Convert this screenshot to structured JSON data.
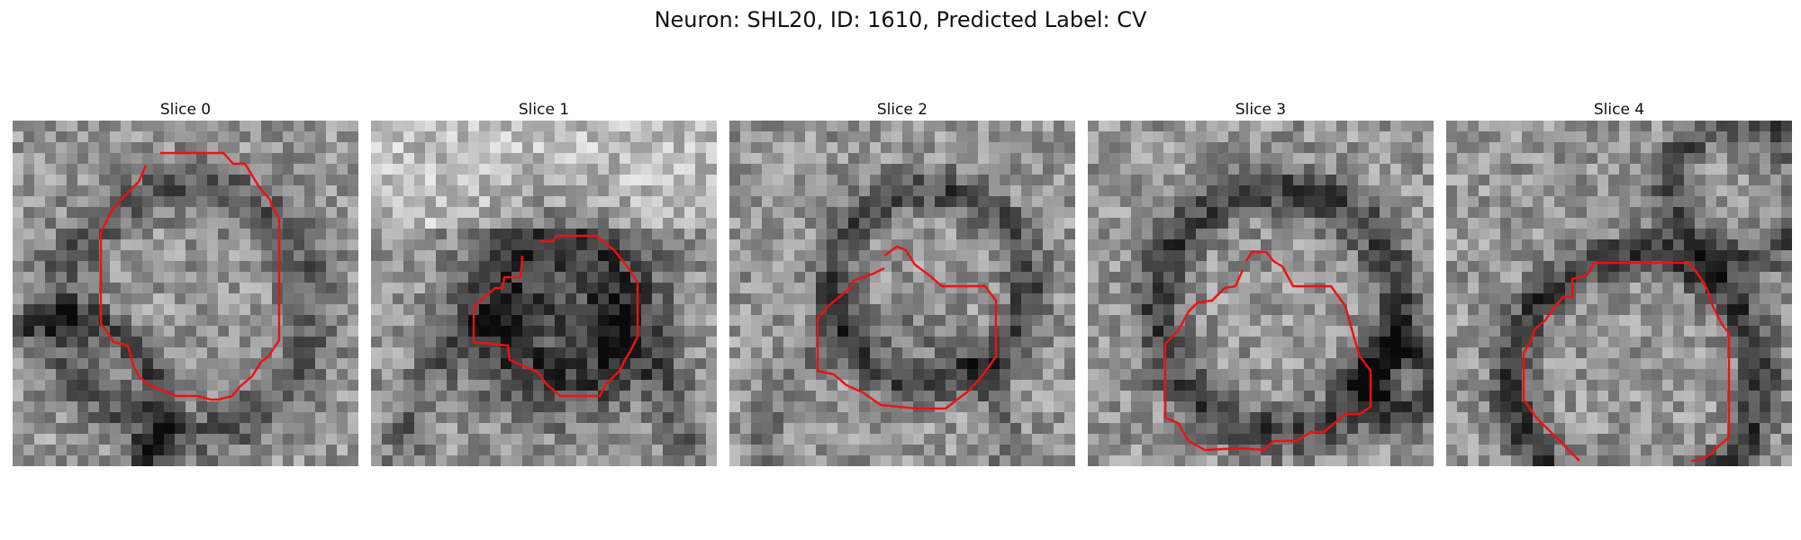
{
  "figure": {
    "title": "Neuron: SHL20, ID: 1610, Predicted Label: CV"
  },
  "panels": [
    {
      "title": "Slice 0",
      "seed": 11,
      "contour_color": "#ee1111"
    },
    {
      "title": "Slice 1",
      "seed": 23,
      "contour_color": "#ee1111"
    },
    {
      "title": "Slice 2",
      "seed": 37,
      "contour_color": "#ee1111"
    },
    {
      "title": "Slice 3",
      "seed": 41,
      "contour_color": "#ee1111"
    },
    {
      "title": "Slice 4",
      "seed": 59,
      "contour_color": "#ee1111"
    }
  ]
}
